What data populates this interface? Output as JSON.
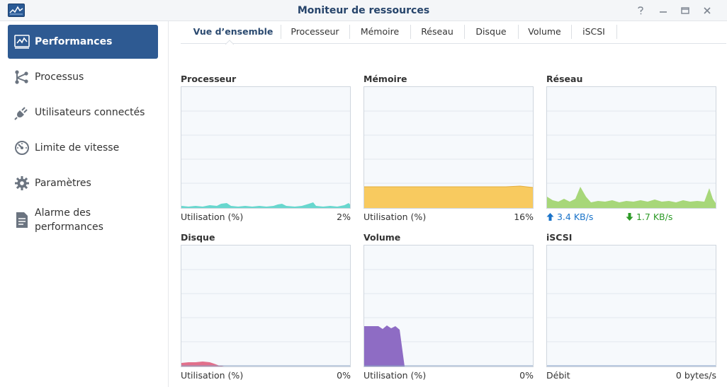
{
  "window": {
    "title": "Moniteur de ressources",
    "app_icon": "resource-monitor-icon",
    "controls": [
      "help-icon",
      "minimize-icon",
      "maximize-icon",
      "close-icon"
    ]
  },
  "sidebar": {
    "items": [
      {
        "label": "Performances",
        "icon": "performance-chart-icon",
        "active": true
      },
      {
        "label": "Processus",
        "icon": "process-nodes-icon",
        "active": false
      },
      {
        "label": "Utilisateurs connectés",
        "icon": "plug-icon",
        "active": false
      },
      {
        "label": "Limite de vitesse",
        "icon": "speedometer-icon",
        "active": false
      },
      {
        "label": "Paramètres",
        "icon": "gear-icon",
        "active": false
      },
      {
        "label": "Alarme des performances",
        "icon": "report-document-icon",
        "active": false
      }
    ]
  },
  "tabs": [
    {
      "label": "Vue d’ensemble",
      "active": true
    },
    {
      "label": "Processeur",
      "active": false
    },
    {
      "label": "Mémoire",
      "active": false
    },
    {
      "label": "Réseau",
      "active": false
    },
    {
      "label": "Disque",
      "active": false
    },
    {
      "label": "Volume",
      "active": false
    },
    {
      "label": "iSCSI",
      "active": false
    }
  ],
  "panels": {
    "processeur": {
      "title": "Processeur",
      "foot_label": "Utilisation (%)",
      "foot_value": "2%",
      "color": "#4fd1c5"
    },
    "memoire": {
      "title": "Mémoire",
      "foot_label": "Utilisation (%)",
      "foot_value": "16%",
      "color": "#f8ca5f"
    },
    "reseau": {
      "title": "Réseau",
      "upload": "3.4 KB/s",
      "download": "1.7 KB/s",
      "color": "#9ed36a",
      "upload_color": "#1a73c9",
      "download_color": "#2d9a27"
    },
    "disque": {
      "title": "Disque",
      "foot_label": "Utilisation (%)",
      "foot_value": "0%",
      "color": "#e0607e"
    },
    "volume": {
      "title": "Volume",
      "foot_label": "Utilisation (%)",
      "foot_value": "0%",
      "color": "#8e6cc4"
    },
    "iscsi": {
      "title": "iSCSI",
      "foot_label": "Débit",
      "foot_value": "0 bytes/s",
      "color": "#7f9cc4"
    }
  }
}
